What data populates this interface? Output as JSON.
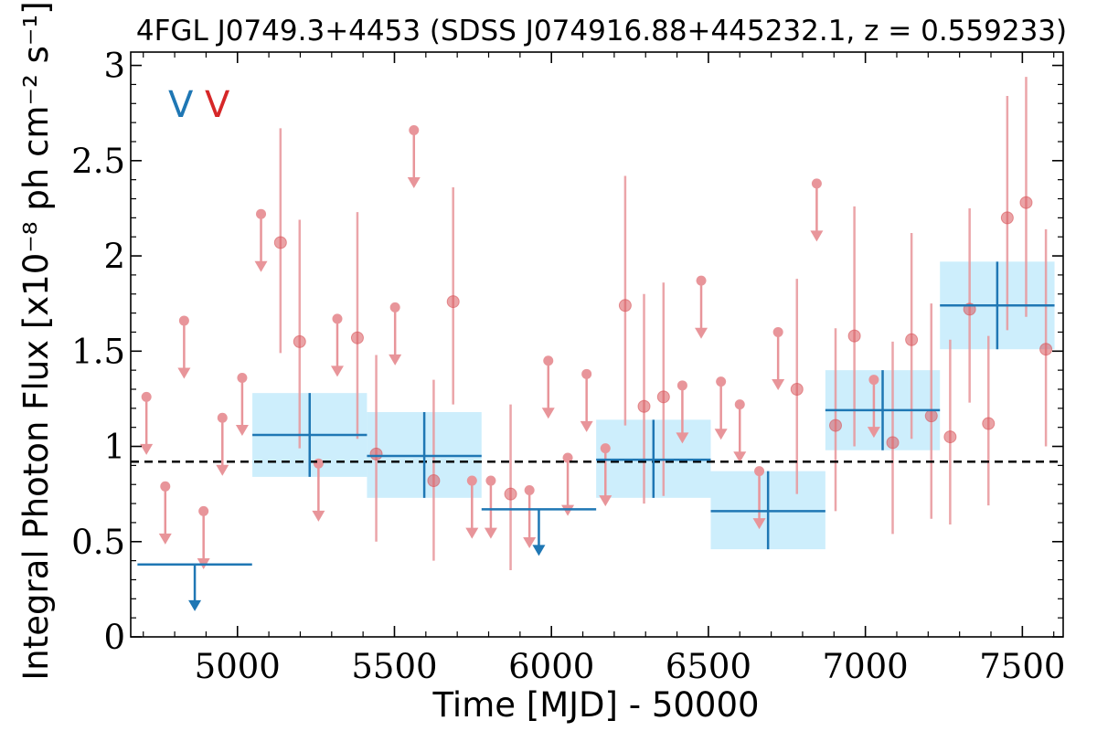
{
  "chart_data": {
    "type": "scatter",
    "title": "4FGL J0749.3+4453 (SDSS J074916.88+445232.1, z = 0.559233)",
    "xlabel": "Time [MJD] - 50000",
    "ylabel": "Integral Photon Flux [x10⁻⁸ ph cm⁻² s⁻¹]",
    "xlim": [
      4660,
      7630
    ],
    "ylim": [
      0,
      3.07
    ],
    "x_ticks": [
      5000,
      5500,
      6000,
      6500,
      7000,
      7500
    ],
    "y_ticks": [
      0,
      0.5,
      1,
      1.5,
      2,
      2.5,
      3
    ],
    "x_tick_labels": [
      "5000",
      "5500",
      "6000",
      "6500",
      "7000",
      "7500"
    ],
    "y_tick_labels": [
      "0",
      "0.5",
      "1",
      "1.5",
      "2",
      "2.5",
      "3"
    ],
    "reference_level": 0.92,
    "legend": [
      {
        "label": "V",
        "color": "#1f77b4"
      },
      {
        "label": "V",
        "color": "#d62728"
      }
    ],
    "colors": {
      "long_bins": "#1f77b4",
      "long_band": "#cdeefc",
      "short_bins": "#e8959a",
      "reference_line": "#000000"
    },
    "series": [
      {
        "bin_width": 365,
        "points": [
          {
            "x": 4864,
            "y": 0.38,
            "upper_limit": true
          },
          {
            "x": 5230,
            "y": 1.06,
            "lo": 0.84,
            "hi": 1.28
          },
          {
            "x": 5595,
            "y": 0.95,
            "lo": 0.73,
            "hi": 1.18
          },
          {
            "x": 5960,
            "y": 0.67,
            "upper_limit": true
          },
          {
            "x": 6325,
            "y": 0.93,
            "lo": 0.73,
            "hi": 1.14
          },
          {
            "x": 6690,
            "y": 0.66,
            "lo": 0.46,
            "hi": 0.87
          },
          {
            "x": 7055,
            "y": 1.19,
            "lo": 0.98,
            "hi": 1.4
          },
          {
            "x": 7420,
            "y": 1.74,
            "lo": 1.51,
            "hi": 1.97
          }
        ]
      },
      {
        "bin_width": 61,
        "points": [
          {
            "x": 4710,
            "y": 1.26,
            "upper_limit": true
          },
          {
            "x": 4770,
            "y": 0.79,
            "upper_limit": true
          },
          {
            "x": 4830,
            "y": 1.66,
            "upper_limit": true
          },
          {
            "x": 4892,
            "y": 0.66,
            "upper_limit": true
          },
          {
            "x": 4952,
            "y": 1.15,
            "upper_limit": true
          },
          {
            "x": 5015,
            "y": 1.36,
            "upper_limit": true
          },
          {
            "x": 5075,
            "y": 2.22,
            "upper_limit": true
          },
          {
            "x": 5137,
            "y": 2.07,
            "lo": 1.49,
            "hi": 2.67
          },
          {
            "x": 5198,
            "y": 1.55,
            "lo": 0.99,
            "hi": 2.19
          },
          {
            "x": 5258,
            "y": 0.91,
            "upper_limit": true
          },
          {
            "x": 5318,
            "y": 1.67,
            "upper_limit": true
          },
          {
            "x": 5382,
            "y": 1.57,
            "lo": 1.04,
            "hi": 2.23
          },
          {
            "x": 5442,
            "y": 0.96,
            "lo": 0.5,
            "hi": 1.48
          },
          {
            "x": 5502,
            "y": 1.73,
            "upper_limit": true
          },
          {
            "x": 5562,
            "y": 2.66,
            "upper_limit": true
          },
          {
            "x": 5625,
            "y": 0.82,
            "lo": 0.4,
            "hi": 1.35
          },
          {
            "x": 5687,
            "y": 1.76,
            "lo": 1.22,
            "hi": 2.36
          },
          {
            "x": 5747,
            "y": 0.82,
            "upper_limit": true
          },
          {
            "x": 5807,
            "y": 0.82,
            "upper_limit": true
          },
          {
            "x": 5870,
            "y": 0.75,
            "lo": 0.35,
            "hi": 1.22
          },
          {
            "x": 5930,
            "y": 0.77,
            "upper_limit": true
          },
          {
            "x": 5990,
            "y": 1.45,
            "upper_limit": true
          },
          {
            "x": 6052,
            "y": 0.94,
            "upper_limit": true
          },
          {
            "x": 6112,
            "y": 1.38,
            "upper_limit": true
          },
          {
            "x": 6172,
            "y": 0.99,
            "upper_limit": true
          },
          {
            "x": 6235,
            "y": 1.74,
            "lo": 1.11,
            "hi": 2.42
          },
          {
            "x": 6295,
            "y": 1.21,
            "lo": 0.7,
            "hi": 1.8
          },
          {
            "x": 6357,
            "y": 1.26,
            "lo": 0.74,
            "hi": 1.86
          },
          {
            "x": 6417,
            "y": 1.32,
            "upper_limit": true
          },
          {
            "x": 6477,
            "y": 1.87,
            "upper_limit": true
          },
          {
            "x": 6540,
            "y": 1.34,
            "upper_limit": true
          },
          {
            "x": 6600,
            "y": 1.22,
            "upper_limit": true
          },
          {
            "x": 6662,
            "y": 0.87,
            "upper_limit": true
          },
          {
            "x": 6722,
            "y": 1.6,
            "upper_limit": true
          },
          {
            "x": 6782,
            "y": 1.3,
            "lo": 0.75,
            "hi": 1.88
          },
          {
            "x": 6845,
            "y": 2.38,
            "upper_limit": true
          },
          {
            "x": 6905,
            "y": 1.11,
            "lo": 0.66,
            "hi": 1.62
          },
          {
            "x": 6965,
            "y": 1.58,
            "lo": 1.0,
            "hi": 2.26
          },
          {
            "x": 7027,
            "y": 1.35,
            "upper_limit": true
          },
          {
            "x": 7087,
            "y": 1.02,
            "lo": 0.54,
            "hi": 1.55
          },
          {
            "x": 7147,
            "y": 1.56,
            "lo": 1.04,
            "hi": 2.12
          },
          {
            "x": 7210,
            "y": 1.16,
            "lo": 0.62,
            "hi": 1.75
          },
          {
            "x": 7270,
            "y": 1.05,
            "lo": 0.59,
            "hi": 1.56
          },
          {
            "x": 7332,
            "y": 1.72,
            "lo": 1.23,
            "hi": 2.25
          },
          {
            "x": 7392,
            "y": 1.12,
            "lo": 0.69,
            "hi": 1.58
          },
          {
            "x": 7452,
            "y": 2.2,
            "lo": 1.61,
            "hi": 2.84
          },
          {
            "x": 7512,
            "y": 2.28,
            "lo": 1.68,
            "hi": 2.94
          },
          {
            "x": 7575,
            "y": 1.51,
            "lo": 1.0,
            "hi": 2.14
          }
        ]
      }
    ]
  }
}
